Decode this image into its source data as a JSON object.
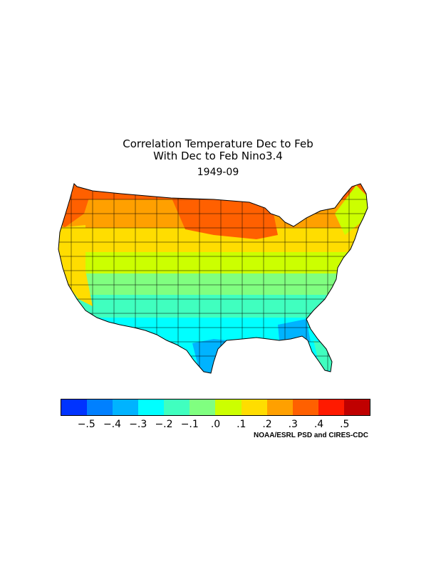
{
  "header": {
    "title_line1": "Correlation Temperature Dec to Feb",
    "title_line2": "With Dec to Feb Nino3.4",
    "period": "1949-09"
  },
  "map": {
    "region": "Contiguous United States climate divisions",
    "bands": [
      {
        "name": "far-north",
        "value": 0.35
      },
      {
        "name": "north",
        "value": 0.25
      },
      {
        "name": "north-central",
        "value": 0.15
      },
      {
        "name": "central",
        "value": 0.05
      },
      {
        "name": "south-central",
        "value": -0.05
      },
      {
        "name": "south",
        "value": -0.15
      },
      {
        "name": "gulf-coast",
        "value": -0.25
      }
    ],
    "hotspots": [
      {
        "name": "upper-midwest",
        "value": 0.45
      },
      {
        "name": "pacific-northwest",
        "value": 0.45
      },
      {
        "name": "south-texas-florida",
        "value": -0.35
      }
    ]
  },
  "legend": {
    "colors": [
      "#0033ff",
      "#0080ff",
      "#00b3ff",
      "#00ffff",
      "#40ffbf",
      "#80ff80",
      "#ccff00",
      "#ffdd00",
      "#ffa000",
      "#ff6000",
      "#ff1a00",
      "#c00000"
    ],
    "ticks": [
      "-.5",
      "-.4",
      "-.3",
      "-.2",
      "-.1",
      ".0",
      ".1",
      ".2",
      ".3",
      ".4",
      ".5"
    ]
  },
  "credit": "NOAA/ESRL PSD and CIRES-CDC"
}
